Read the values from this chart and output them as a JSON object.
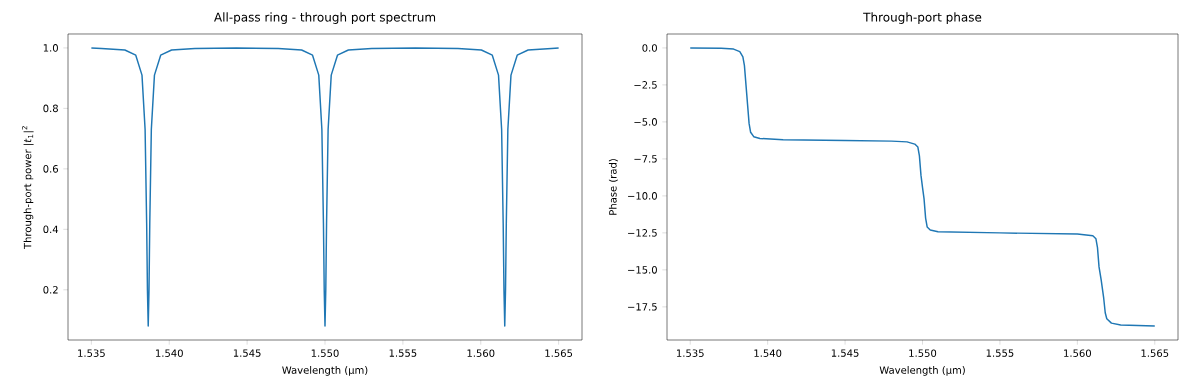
{
  "chart_data": [
    {
      "type": "line",
      "title": "All-pass ring - through port spectrum",
      "xlabel": "Wavelength (µm)",
      "ylabel": "Through-port power |*t*$_{1}$|$^{2}$",
      "x": [
        1.535,
        1.53565,
        1.53715,
        1.53785,
        1.53825,
        1.53845,
        1.53855,
        1.5386,
        1.53865,
        1.5387,
        1.53875,
        1.53885,
        1.53905,
        1.53945,
        1.54015,
        1.54165,
        1.5443,
        1.547,
        1.5485,
        1.5492,
        1.5496,
        1.5498,
        1.5499,
        1.54995,
        1.55,
        1.55005,
        1.5501,
        1.5502,
        1.5504,
        1.5508,
        1.5515,
        1.553,
        1.5558,
        1.55854,
        1.56004,
        1.56074,
        1.56114,
        1.56134,
        1.56144,
        1.56149,
        1.56154,
        1.56159,
        1.56164,
        1.56174,
        1.56194,
        1.56234,
        1.56304,
        1.56454,
        1.565
      ],
      "series": [
        {
          "color": "#1f77b4",
          "values": [
            1.0,
            0.998,
            0.993,
            0.976,
            0.91,
            0.73,
            0.42,
            0.199,
            0.08,
            0.199,
            0.42,
            0.73,
            0.91,
            0.976,
            0.993,
            0.998,
            1.0,
            0.998,
            0.993,
            0.976,
            0.91,
            0.73,
            0.42,
            0.199,
            0.08,
            0.199,
            0.42,
            0.73,
            0.91,
            0.976,
            0.993,
            0.998,
            1.0,
            0.998,
            0.993,
            0.976,
            0.91,
            0.73,
            0.42,
            0.199,
            0.08,
            0.199,
            0.42,
            0.73,
            0.91,
            0.976,
            0.993,
            0.998,
            1.0
          ]
        }
      ],
      "xlim": [
        1.5335,
        1.5665
      ],
      "ylim": [
        0.034,
        1.046
      ],
      "xticks": [
        {
          "value": 1.535,
          "label": "1.535"
        },
        {
          "value": 1.54,
          "label": "1.540"
        },
        {
          "value": 1.545,
          "label": "1.545"
        },
        {
          "value": 1.55,
          "label": "1.550"
        },
        {
          "value": 1.555,
          "label": "1.555"
        },
        {
          "value": 1.56,
          "label": "1.560"
        },
        {
          "value": 1.565,
          "label": "1.565"
        }
      ],
      "yticks": [
        {
          "value": 0.2,
          "label": "0.2"
        },
        {
          "value": 0.4,
          "label": "0.4"
        },
        {
          "value": 0.6,
          "label": "0.6"
        },
        {
          "value": 0.8,
          "label": "0.8"
        },
        {
          "value": 1,
          "label": "1.0"
        }
      ]
    },
    {
      "type": "line",
      "title": "Through-port phase",
      "xlabel": "Wavelength (µm)",
      "ylabel": "Phase (rad)",
      "x": [
        1.535,
        1.537,
        1.5378,
        1.5382,
        1.5384,
        1.5385,
        1.5386,
        1.53865,
        1.5387,
        1.5388,
        1.5389,
        1.5391,
        1.5395,
        1.541,
        1.545,
        1.548,
        1.549,
        1.5495,
        1.5497,
        1.5498,
        1.5499,
        1.55,
        1.5501,
        1.5502,
        1.5503,
        1.5505,
        1.551,
        1.555,
        1.56,
        1.561,
        1.5612,
        1.5613,
        1.5614,
        1.56154,
        1.5617,
        1.5618,
        1.5619,
        1.5622,
        1.5628,
        1.565
      ],
      "series": [
        {
          "color": "#1f77b4",
          "values": [
            0,
            -0.02,
            -0.08,
            -0.25,
            -0.6,
            -1.2,
            -2.5,
            -3.14,
            -3.8,
            -5.1,
            -5.7,
            -6.0,
            -6.12,
            -6.2,
            -6.25,
            -6.3,
            -6.35,
            -6.5,
            -6.7,
            -7.3,
            -8.6,
            -9.42,
            -10.2,
            -11.5,
            -12.1,
            -12.3,
            -12.42,
            -12.5,
            -12.58,
            -12.7,
            -12.9,
            -13.5,
            -14.8,
            -15.7,
            -16.9,
            -17.9,
            -18.3,
            -18.6,
            -18.72,
            -18.8
          ]
        }
      ],
      "xlim": [
        1.5335,
        1.5665
      ],
      "ylim": [
        -19.74,
        0.94
      ],
      "xticks": [
        {
          "value": 1.535,
          "label": "1.535"
        },
        {
          "value": 1.54,
          "label": "1.540"
        },
        {
          "value": 1.545,
          "label": "1.545"
        },
        {
          "value": 1.55,
          "label": "1.550"
        },
        {
          "value": 1.555,
          "label": "1.555"
        },
        {
          "value": 1.56,
          "label": "1.560"
        },
        {
          "value": 1.565,
          "label": "1.565"
        }
      ],
      "yticks": [
        {
          "value": 0,
          "label": "0.0"
        },
        {
          "value": -2.5,
          "label": "−2.5"
        },
        {
          "value": -5,
          "label": "−5.0"
        },
        {
          "value": -7.5,
          "label": "−7.5"
        },
        {
          "value": -10,
          "label": "−10.0"
        },
        {
          "value": -12.5,
          "label": "−12.5"
        },
        {
          "value": -15,
          "label": "−15.0"
        },
        {
          "value": -17.5,
          "label": "−17.5"
        }
      ]
    }
  ]
}
